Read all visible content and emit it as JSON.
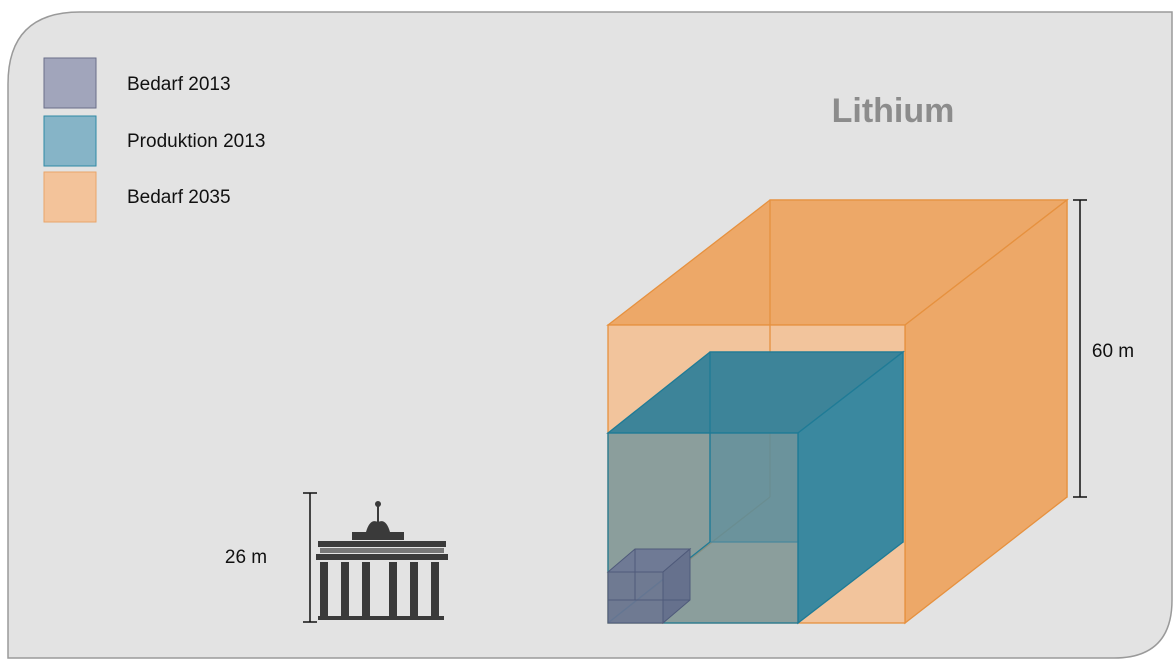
{
  "legend": [
    {
      "label": "Bedarf 2013"
    },
    {
      "label": "Produktion 2013"
    },
    {
      "label": "Bedarf 2035"
    }
  ],
  "title": "Lithium",
  "dimensions": {
    "large": "60 m",
    "reference": "26 m"
  }
}
